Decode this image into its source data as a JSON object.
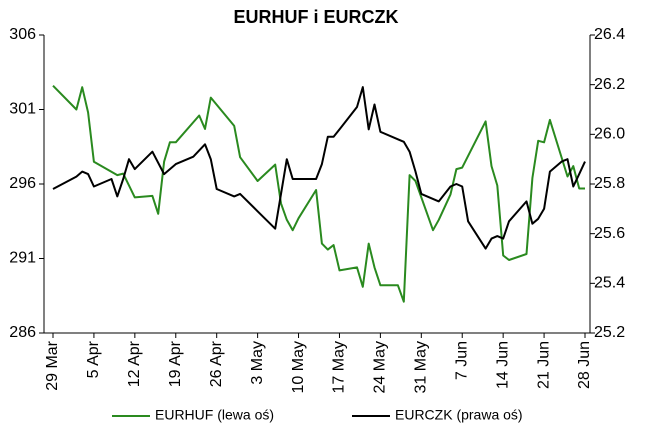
{
  "chart_data": {
    "type": "line",
    "title": "EURHUF i EURCZK",
    "xticks": [
      "29 Mar",
      "5 Apr",
      "12 Apr",
      "19 Apr",
      "26 Apr",
      "3 May",
      "10 May",
      "17 May",
      "24 May",
      "31 May",
      "7 Jun",
      "14 Jun",
      "21 Jun",
      "28 Jun"
    ],
    "ylim": [
      286,
      306
    ],
    "yticks": [
      286,
      291,
      296,
      301,
      306
    ],
    "y2lim": [
      25.2,
      26.4
    ],
    "y2ticks": [
      25.2,
      25.4,
      25.6,
      25.8,
      {
        "value": 26,
        "label": "26.0"
      },
      26.2,
      26.4
    ],
    "series": [
      {
        "name": "EURHUF (lewa oś)",
        "color": "#2a8a1f",
        "axis": "y",
        "x": [
          "29 Mar",
          "2 Apr",
          "3 Apr",
          "4 Apr",
          "5 Apr",
          "9 Apr",
          "10 Apr",
          "12 Apr",
          "15 Apr",
          "16 Apr",
          "17 Apr",
          "18 Apr",
          "19 Apr",
          "23 Apr",
          "24 Apr",
          "25 Apr",
          "29 Apr",
          "30 Apr",
          "3 May",
          "6 May",
          "7 May",
          "8 May",
          "9 May",
          "10 May",
          "13 May",
          "14 May",
          "15 May",
          "16 May",
          "17 May",
          "20 May",
          "21 May",
          "22 May",
          "23 May",
          "24 May",
          "27 May",
          "28 May",
          "29 May",
          "30 May",
          "2 Jun",
          "3 Jun",
          "5 Jun",
          "6 Jun",
          "7 Jun",
          "11 Jun",
          "12 Jun",
          "13 Jun",
          "14 Jun",
          "15 Jun",
          "18 Jun",
          "19 Jun",
          "20 Jun",
          "21 Jun",
          "22 Jun",
          "25 Jun",
          "26 Jun",
          "27 Jun",
          "28 Jun"
        ],
        "values": [
          302.6,
          301.0,
          302.5,
          300.8,
          297.5,
          296.6,
          296.7,
          295.1,
          295.2,
          294.0,
          297.5,
          298.8,
          298.8,
          300.6,
          299.7,
          301.8,
          299.9,
          297.8,
          296.2,
          297.3,
          294.7,
          293.6,
          292.9,
          293.7,
          295.6,
          292.0,
          291.6,
          291.9,
          290.2,
          290.4,
          289.1,
          292.0,
          290.4,
          289.2,
          289.2,
          288.1,
          296.6,
          296.2,
          292.9,
          293.6,
          295.3,
          297.0,
          297.1,
          300.2,
          297.2,
          295.9,
          291.2,
          290.9,
          291.3,
          296.4,
          298.9,
          298.8,
          300.3,
          296.5,
          297.2,
          295.7,
          295.7
        ]
      },
      {
        "name": "EURCZK (prawa oś)",
        "color": "#000000",
        "axis": "y2",
        "x": [
          "29 Mar",
          "2 Apr",
          "3 Apr",
          "4 Apr",
          "5 Apr",
          "8 Apr",
          "9 Apr",
          "10 Apr",
          "11 Apr",
          "12 Apr",
          "15 Apr",
          "17 Apr",
          "19 Apr",
          "22 Apr",
          "24 Apr",
          "25 Apr",
          "26 Apr",
          "29 Apr",
          "30 Apr",
          "3 May",
          "6 May",
          "8 May",
          "9 May",
          "13 May",
          "14 May",
          "15 May",
          "16 May",
          "17 May",
          "20 May",
          "21 May",
          "22 May",
          "23 May",
          "24 May",
          "27 May",
          "28 May",
          "29 May",
          "30 May",
          "31 May",
          "3 Jun",
          "5 Jun",
          "6 Jun",
          "7 Jun",
          "8 Jun",
          "11 Jun",
          "12 Jun",
          "13 Jun",
          "14 Jun",
          "15 Jun",
          "18 Jun",
          "19 Jun",
          "20 Jun",
          "21 Jun",
          "22 Jun",
          "24 Jun",
          "25 Jun",
          "26 Jun",
          "27 Jun",
          "28 Jun"
        ],
        "values": [
          25.78,
          25.83,
          25.85,
          25.84,
          25.79,
          25.82,
          25.75,
          25.82,
          25.9,
          25.86,
          25.93,
          25.84,
          25.88,
          25.91,
          25.96,
          25.9,
          25.78,
          25.75,
          25.76,
          25.69,
          25.62,
          25.9,
          25.82,
          25.82,
          25.88,
          25.99,
          25.99,
          26.02,
          26.11,
          26.19,
          26.02,
          26.12,
          26.01,
          25.98,
          25.97,
          25.93,
          25.85,
          25.76,
          25.73,
          25.79,
          25.8,
          25.79,
          25.65,
          25.54,
          25.58,
          25.59,
          25.58,
          25.65,
          25.73,
          25.64,
          25.66,
          25.7,
          25.85,
          25.89,
          25.9,
          25.79,
          25.84,
          25.89
        ]
      }
    ]
  }
}
